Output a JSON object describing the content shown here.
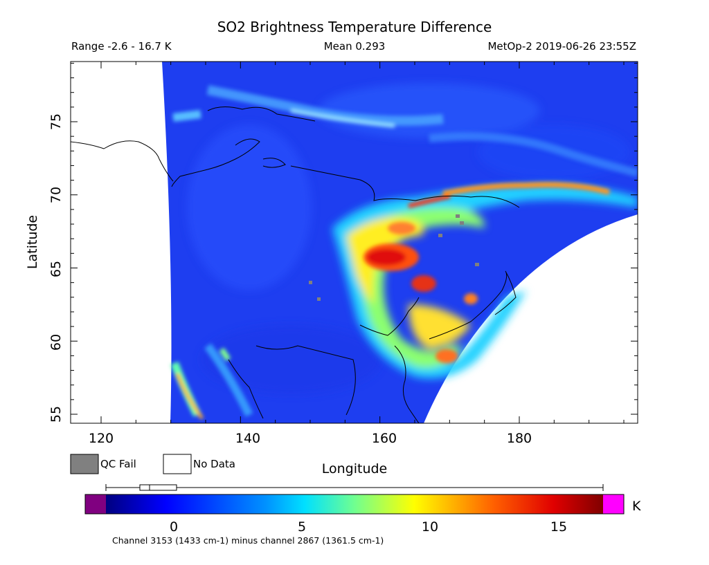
{
  "title": "SO2 Brightness Temperature Difference",
  "info": {
    "range": "Range -2.6 - 16.7 K",
    "mean": "Mean 0.293",
    "satellite": "MetOp-2 2019-06-26 23:55Z"
  },
  "axes": {
    "xlabel": "Longitude",
    "ylabel": "Latitude",
    "x_ticks": [
      "120",
      "140",
      "160",
      "180"
    ],
    "y_ticks": [
      "55",
      "60",
      "65",
      "70",
      "75"
    ]
  },
  "legend": {
    "qc_fail": "QC Fail",
    "no_data": "No Data",
    "qc_fail_color": "#808080",
    "no_data_color": "#ffffff"
  },
  "colorbar": {
    "unit": "K",
    "ticks": [
      "0",
      "5",
      "10",
      "15"
    ],
    "under_color": "#800080",
    "over_color": "#ff00ff",
    "note": "Channel 3153 (1433 cm-1) minus channel 2867 (1361.5 cm-1)"
  },
  "colors": {
    "background_field": "#1e3cf0",
    "coastline": "#000000"
  }
}
